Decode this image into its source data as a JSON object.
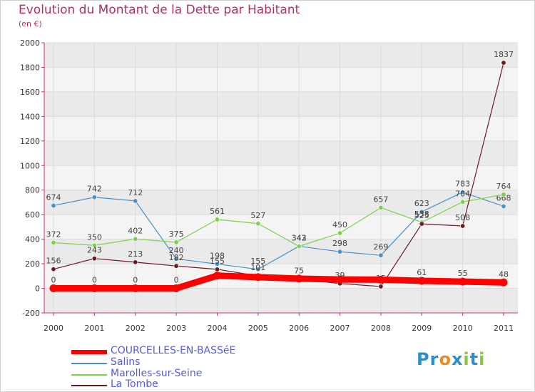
{
  "title": "Evolution du Montant de la Dette par Habitant",
  "subtitle": "(en €)",
  "logo_text": "Proxiti",
  "chart_data": {
    "type": "line",
    "title": "Evolution du Montant de la Dette par Habitant",
    "ylabel": "(en €)",
    "xlabel": "",
    "categories": [
      "2000",
      "2001",
      "2002",
      "2003",
      "2004",
      "2005",
      "2006",
      "2007",
      "2008",
      "2009",
      "2010",
      "2011"
    ],
    "ylim": [
      -200,
      2000
    ],
    "yticks": [
      -200,
      0,
      200,
      400,
      600,
      800,
      1000,
      1200,
      1400,
      1600,
      1800,
      2000
    ],
    "grid": true,
    "legend_position": "bottom",
    "series": [
      {
        "name": "COURCELLES-EN-BASSéE",
        "color": "#ff0000",
        "values": [
          0,
          0,
          0,
          0,
          103,
          91,
          79,
          72,
          71,
          61,
          55,
          48
        ],
        "labels": [
          "0",
          "0",
          "0",
          "0",
          "",
          "",
          "",
          "",
          "",
          "61",
          "55",
          "48"
        ]
      },
      {
        "name": "Salins",
        "color": "#4a90c8",
        "values": [
          674,
          742,
          712,
          240,
          198,
          155,
          343,
          298,
          269,
          623,
          783,
          668
        ],
        "labels": [
          "674",
          "742",
          "712",
          "240",
          "198",
          "155",
          "343",
          "298",
          "269",
          "623",
          "783",
          "668"
        ]
      },
      {
        "name": "Marolles-sur-Seine",
        "color": "#7cd04a",
        "values": [
          372,
          350,
          402,
          375,
          561,
          527,
          342,
          450,
          657,
          538,
          704,
          764
        ],
        "labels": [
          "372",
          "350",
          "402",
          "375",
          "561",
          "527",
          "342",
          "450",
          "657",
          "538",
          "704",
          "764"
        ]
      },
      {
        "name": "La Tombe",
        "color": "#6b1a24",
        "values": [
          156,
          243,
          213,
          182,
          155,
          101,
          75,
          39,
          15,
          525,
          508,
          1837
        ],
        "labels": [
          "156",
          "243",
          "213",
          "182",
          "155",
          "101",
          "75",
          "39",
          "15",
          "525",
          "508",
          "1837"
        ]
      }
    ]
  }
}
